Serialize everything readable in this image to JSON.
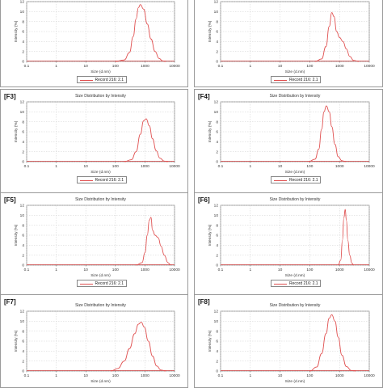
{
  "figure": {
    "style": {
      "curve_color": "#e05050",
      "grid_color": "#cfcfcf",
      "axis_color": "#555555"
    }
  },
  "chart_data": [
    {
      "panel": "",
      "type": "line",
      "title": "",
      "xlabel": "Size (d.nm)",
      "ylabel": "Intensity (%)",
      "xscale": "log",
      "xlim": [
        0.1,
        10000
      ],
      "ylim": [
        0,
        12
      ],
      "xticks": [
        "0.1",
        "1",
        "10",
        "100",
        "1000",
        "10000"
      ],
      "yticks": [
        "0",
        "2",
        "4",
        "6",
        "8",
        "10",
        "12"
      ],
      "grid": true,
      "legend": "Record 216: 2.1",
      "legend_position": "bottom-center",
      "series": [
        {
          "name": "Record 216: 2.1",
          "x": [
            100,
            200,
            300,
            400,
            500,
            600,
            700,
            900,
            1200,
            1600,
            2200,
            3000,
            4000,
            5000
          ],
          "y": [
            0,
            0.3,
            1.8,
            5.0,
            8.5,
            10.8,
            11.4,
            10.5,
            7.5,
            4.5,
            2.0,
            0.6,
            0.1,
            0
          ]
        }
      ]
    },
    {
      "panel": "",
      "type": "line",
      "title": "",
      "xlabel": "Size (d.nm)",
      "ylabel": "Intensity (%)",
      "xscale": "log",
      "xlim": [
        0.1,
        10000
      ],
      "ylim": [
        0,
        12
      ],
      "xticks": [
        "0.1",
        "1",
        "10",
        "100",
        "1000",
        "10000"
      ],
      "yticks": [
        "0",
        "2",
        "4",
        "6",
        "8",
        "10",
        "12"
      ],
      "grid": true,
      "legend": "Record 216: 2.1",
      "legend_position": "bottom-center",
      "series": [
        {
          "name": "Record 216: 2.1",
          "x": [
            150,
            250,
            350,
            450,
            550,
            650,
            800,
            1000,
            1300,
            1700,
            2200,
            3000,
            4500
          ],
          "y": [
            0,
            0.5,
            3.0,
            7.0,
            9.8,
            9.0,
            6.0,
            4.8,
            4.0,
            2.5,
            1.0,
            0.2,
            0
          ]
        }
      ]
    },
    {
      "panel": "[F3]",
      "type": "line",
      "title": "Size Distribution by Intensity",
      "xlabel": "Size (d.nm)",
      "ylabel": "Intensity (%)",
      "xscale": "log",
      "xlim": [
        0.1,
        10000
      ],
      "ylim": [
        0,
        12
      ],
      "xticks": [
        "0.1",
        "1",
        "10",
        "100",
        "1000",
        "10000"
      ],
      "yticks": [
        "0",
        "2",
        "4",
        "6",
        "8",
        "10",
        "12"
      ],
      "grid": true,
      "legend": "Record 216: 2.1",
      "legend_position": "bottom-center",
      "series": [
        {
          "name": "Record 216: 2.1",
          "x": [
            200,
            350,
            500,
            700,
            900,
            1100,
            1400,
            1800,
            2400,
            3200,
            4500,
            6000
          ],
          "y": [
            0,
            0.4,
            2.0,
            5.5,
            8.2,
            8.6,
            7.2,
            4.6,
            2.2,
            0.7,
            0.1,
            0
          ]
        }
      ]
    },
    {
      "panel": "[F4]",
      "type": "line",
      "title": "Size Distribution by Intensity",
      "xlabel": "Size (d.nm)",
      "ylabel": "Intensity (%)",
      "xscale": "log",
      "xlim": [
        0.1,
        10000
      ],
      "ylim": [
        0,
        12
      ],
      "xticks": [
        "0.1",
        "1",
        "10",
        "100",
        "1000",
        "10000"
      ],
      "yticks": [
        "0",
        "2",
        "4",
        "6",
        "8",
        "10",
        "12"
      ],
      "grid": true,
      "legend": "Record 216: 2.1",
      "legend_position": "bottom-center",
      "series": [
        {
          "name": "Record 216: 2.1",
          "x": [
            90,
            150,
            200,
            250,
            300,
            360,
            450,
            550,
            700,
            900,
            1200,
            1600
          ],
          "y": [
            0,
            0.5,
            2.5,
            6.5,
            10.0,
            11.2,
            10.0,
            7.0,
            3.5,
            1.0,
            0.2,
            0
          ]
        }
      ]
    },
    {
      "panel": "[F5]",
      "type": "line",
      "title": "Size Distribution by Intensity",
      "xlabel": "Size (d.nm)",
      "ylabel": "Intensity (%)",
      "xscale": "log",
      "xlim": [
        0.1,
        10000
      ],
      "ylim": [
        0,
        12
      ],
      "xticks": [
        "0.1",
        "1",
        "10",
        "100",
        "1000",
        "10000"
      ],
      "yticks": [
        "0",
        "2",
        "4",
        "6",
        "8",
        "10",
        "12"
      ],
      "grid": true,
      "legend": "Record 216: 2.1",
      "legend_position": "bottom-center",
      "series": [
        {
          "name": "Record 216: 2.1",
          "x": [
            500,
            800,
            1000,
            1200,
            1400,
            1600,
            1800,
            2200,
            2800,
            3500,
            4500,
            6000,
            7500
          ],
          "y": [
            0,
            0.5,
            2.5,
            6.0,
            9.0,
            9.6,
            7.0,
            6.0,
            5.5,
            3.8,
            2.0,
            0.5,
            0
          ]
        }
      ]
    },
    {
      "panel": "[F6]",
      "type": "line",
      "title": "Size Distribution by Intensity",
      "xlabel": "Size (d.nm)",
      "ylabel": "Intensity (%)",
      "xscale": "log",
      "xlim": [
        0.1,
        10000
      ],
      "ylim": [
        0,
        12
      ],
      "xticks": [
        "0.1",
        "1",
        "10",
        "100",
        "1000",
        "10000"
      ],
      "yticks": [
        "0",
        "2",
        "4",
        "6",
        "8",
        "10",
        "12"
      ],
      "grid": true,
      "legend": "Record 216: 2.1",
      "legend_position": "bottom-center",
      "series": [
        {
          "name": "Record 216: 2.1",
          "x": [
            900,
            1100,
            1250,
            1400,
            1550,
            1700,
            1900,
            2200,
            2600,
            3000
          ],
          "y": [
            0,
            1.0,
            5.0,
            9.5,
            11.2,
            9.0,
            5.0,
            2.0,
            0.4,
            0
          ]
        }
      ]
    },
    {
      "panel": "[F7]",
      "type": "line",
      "title": "Size Distribution by Intensity",
      "xlabel": "Size (d.nm)",
      "ylabel": "Intensity (%)",
      "xscale": "log",
      "xlim": [
        0.1,
        10000
      ],
      "ylim": [
        0,
        12
      ],
      "xticks": [
        "0.1",
        "1",
        "10",
        "100",
        "1000",
        "10000"
      ],
      "yticks": [
        "0",
        "2",
        "4",
        "6",
        "8",
        "10",
        "12"
      ],
      "grid": true,
      "legend": "",
      "legend_position": "",
      "series": [
        {
          "name": "",
          "x": [
            70,
            120,
            200,
            300,
            450,
            600,
            750,
            950,
            1300,
            1800,
            2500,
            3500,
            5000
          ],
          "y": [
            0,
            0.5,
            2.0,
            4.5,
            7.5,
            9.4,
            9.8,
            8.8,
            6.0,
            3.0,
            1.0,
            0.2,
            0
          ]
        }
      ]
    },
    {
      "panel": "[F8]",
      "type": "line",
      "title": "Size Distribution by Intensity",
      "xlabel": "Size (d.nm)",
      "ylabel": "Intensity (%)",
      "xscale": "log",
      "xlim": [
        0.1,
        10000
      ],
      "ylim": [
        0,
        12
      ],
      "xticks": [
        "0.1",
        "1",
        "10",
        "100",
        "1000",
        "10000"
      ],
      "yticks": [
        "0",
        "2",
        "4",
        "6",
        "8",
        "10",
        "12"
      ],
      "grid": true,
      "legend": "",
      "legend_position": "",
      "series": [
        {
          "name": "",
          "x": [
            100,
            170,
            250,
            350,
            450,
            550,
            700,
            900,
            1200,
            1700,
            2500,
            3500
          ],
          "y": [
            0,
            0.8,
            3.5,
            7.5,
            10.6,
            11.3,
            10.0,
            6.8,
            3.2,
            0.9,
            0.1,
            0
          ]
        }
      ]
    }
  ]
}
